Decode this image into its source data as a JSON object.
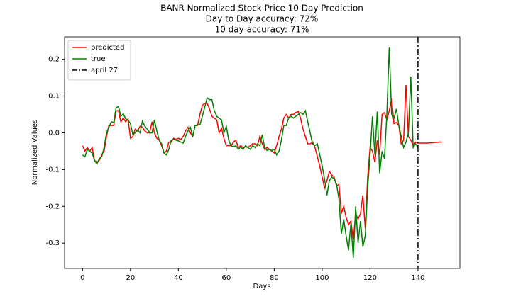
{
  "chart_data": {
    "type": "line",
    "title": "BANR Normalized Stock Price 10 Day Prediction",
    "subtitle": "Day to Day accuracy: 72%",
    "subtitle2": "10 day accuracy: 71%",
    "x_label": "Days",
    "y_label": "Normalized Values",
    "x": [
      0,
      1,
      2,
      3,
      4,
      5,
      6,
      7,
      8,
      9,
      10,
      11,
      12,
      13,
      14,
      15,
      16,
      17,
      18,
      19,
      20,
      21,
      22,
      23,
      24,
      25,
      26,
      27,
      28,
      29,
      30,
      31,
      32,
      33,
      34,
      35,
      36,
      37,
      38,
      39,
      40,
      41,
      42,
      43,
      44,
      45,
      46,
      47,
      48,
      49,
      50,
      51,
      52,
      53,
      54,
      55,
      56,
      57,
      58,
      59,
      60,
      61,
      62,
      63,
      64,
      65,
      66,
      67,
      68,
      69,
      70,
      71,
      72,
      73,
      74,
      75,
      76,
      77,
      78,
      79,
      80,
      81,
      82,
      83,
      84,
      85,
      86,
      87,
      88,
      89,
      90,
      91,
      92,
      93,
      94,
      95,
      96,
      97,
      98,
      99,
      100,
      101,
      102,
      103,
      104,
      105,
      106,
      107,
      108,
      109,
      110,
      111,
      112,
      113,
      114,
      115,
      116,
      117,
      118,
      119,
      120,
      121,
      122,
      123,
      124,
      125,
      126,
      127,
      128,
      129,
      130,
      131,
      132,
      133,
      134,
      135,
      136,
      137,
      138,
      139,
      140,
      141,
      142,
      143,
      144,
      145,
      146,
      147,
      148,
      149,
      150
    ],
    "series": [
      {
        "name": "predicted",
        "color": "#ff0000",
        "values": [
          -0.035,
          -0.05,
          -0.04,
          -0.05,
          -0.04,
          -0.075,
          -0.08,
          -0.075,
          -0.06,
          -0.05,
          -0.01,
          0.02,
          0.02,
          0.02,
          0.06,
          0.06,
          0.03,
          0.04,
          0.03,
          0.038,
          -0.015,
          -0.01,
          0.01,
          0.005,
          0.018,
          0.015,
          0.005,
          0.0,
          0.0,
          0.03,
          0.0,
          -0.015,
          -0.02,
          -0.035,
          -0.055,
          -0.05,
          -0.025,
          -0.025,
          -0.015,
          -0.018,
          -0.015,
          -0.018,
          -0.01,
          0.005,
          0.015,
          0.0,
          -0.01,
          0.02,
          0.02,
          0.05,
          0.075,
          0.08,
          0.08,
          0.065,
          0.045,
          0.04,
          0.035,
          0.0,
          0.012,
          -0.015,
          -0.035,
          -0.035,
          -0.035,
          -0.025,
          -0.02,
          -0.04,
          -0.035,
          -0.04,
          -0.038,
          -0.04,
          -0.035,
          -0.03,
          -0.03,
          -0.035,
          -0.01,
          -0.03,
          -0.045,
          -0.04,
          -0.045,
          -0.05,
          -0.055,
          -0.035,
          -0.01,
          0.01,
          0.04,
          0.05,
          0.04,
          0.05,
          0.05,
          0.055,
          0.058,
          0.04,
          0.01,
          -0.01,
          -0.03,
          -0.03,
          -0.025,
          -0.04,
          -0.065,
          -0.09,
          -0.12,
          -0.15,
          -0.13,
          -0.105,
          -0.115,
          -0.12,
          -0.145,
          -0.14,
          -0.22,
          -0.2,
          -0.23,
          -0.25,
          -0.24,
          -0.29,
          -0.22,
          -0.235,
          -0.22,
          -0.17,
          -0.26,
          -0.12,
          -0.04,
          -0.05,
          -0.08,
          -0.02,
          -0.06,
          0.05,
          0.055,
          0.035,
          0.06,
          0.093,
          0.025,
          0.028,
          0.02,
          -0.03,
          -0.02,
          0.13,
          -0.01,
          -0.02,
          -0.035,
          -0.025,
          -0.028,
          -0.028,
          -0.028,
          -0.028,
          -0.028,
          -0.027,
          -0.027,
          -0.026,
          -0.026,
          -0.025,
          -0.025
        ]
      },
      {
        "name": "true",
        "color": "#008000",
        "values": [
          -0.06,
          -0.065,
          -0.045,
          -0.05,
          -0.055,
          -0.075,
          -0.085,
          -0.07,
          -0.065,
          -0.04,
          0.0,
          0.015,
          0.03,
          0.028,
          0.068,
          0.072,
          0.045,
          0.052,
          0.038,
          0.035,
          0.025,
          -0.005,
          0.0,
          0.008,
          0.0,
          0.032,
          0.018,
          0.01,
          0.0,
          0.0,
          0.035,
          0.005,
          -0.02,
          -0.03,
          -0.055,
          -0.06,
          -0.045,
          -0.02,
          -0.018,
          -0.02,
          -0.022,
          -0.025,
          -0.028,
          -0.01,
          0.005,
          0.015,
          -0.01,
          0.02,
          0.022,
          0.022,
          0.045,
          0.07,
          0.095,
          0.09,
          0.09,
          0.06,
          0.045,
          0.04,
          0.035,
          0.0,
          0.018,
          -0.02,
          -0.035,
          -0.038,
          -0.035,
          -0.045,
          -0.038,
          -0.045,
          -0.035,
          -0.04,
          -0.045,
          -0.035,
          -0.04,
          -0.03,
          -0.035,
          -0.005,
          -0.04,
          -0.048,
          -0.045,
          -0.048,
          -0.045,
          -0.06,
          -0.05,
          -0.02,
          0.02,
          0.02,
          0.04,
          0.045,
          0.04,
          0.045,
          0.05,
          0.055,
          0.05,
          0.06,
          0.03,
          0.0,
          -0.03,
          -0.035,
          -0.03,
          -0.06,
          -0.09,
          -0.125,
          -0.17,
          -0.13,
          -0.12,
          -0.125,
          -0.14,
          -0.18,
          -0.275,
          -0.235,
          -0.28,
          -0.32,
          -0.245,
          -0.34,
          -0.2,
          -0.3,
          -0.24,
          -0.31,
          -0.28,
          -0.15,
          -0.06,
          0.045,
          -0.06,
          0.058,
          -0.11,
          -0.05,
          -0.07,
          0.05,
          0.232,
          0.05,
          0.04,
          0.065,
          0.02,
          -0.01,
          -0.04,
          -0.025,
          0.0,
          0.153,
          -0.04,
          -0.03,
          -0.04,
          null,
          null,
          null,
          null,
          null,
          null,
          null,
          null,
          null,
          null
        ]
      }
    ],
    "vlines": [
      {
        "name": "april 27",
        "x": 140,
        "color": "#000000"
      }
    ],
    "xlim": [
      -7.5,
      157.5
    ],
    "ylim": [
      -0.369,
      0.261
    ],
    "xticks": [
      0,
      20,
      40,
      60,
      80,
      100,
      120,
      140
    ],
    "yticks": [
      -0.3,
      -0.2,
      -0.1,
      {
        "value": 0,
        "label": "0.0"
      },
      0.1,
      0.2
    ],
    "grid": false,
    "legend": "upper left"
  }
}
